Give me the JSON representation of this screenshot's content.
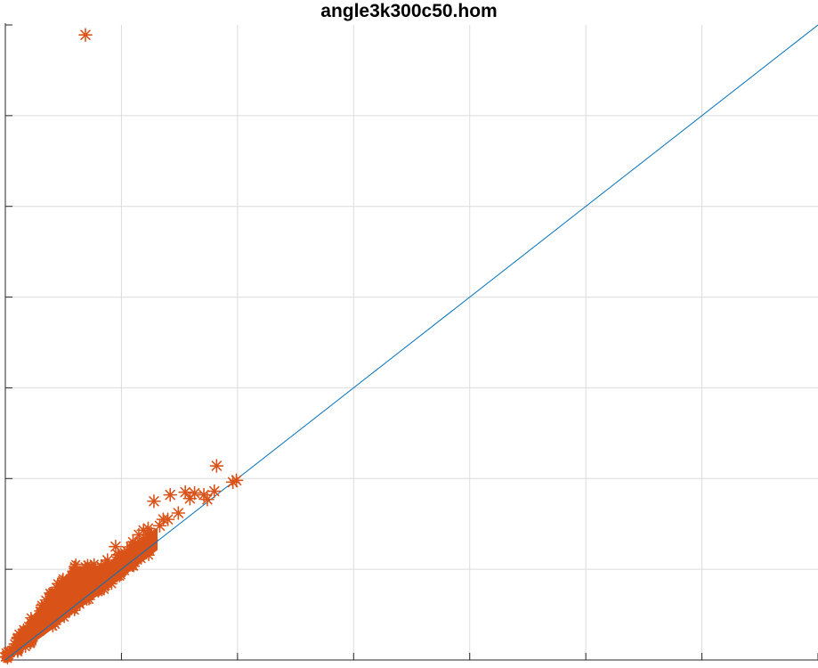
{
  "chart_data": {
    "type": "scatter",
    "title": "angle3k300c50.hom",
    "xlabel": "",
    "ylabel": "",
    "xlim": [
      0,
      7
    ],
    "ylim": [
      0,
      7
    ],
    "grid": true,
    "legend": "none",
    "series": [
      {
        "kind": "line",
        "color": "#0072BD",
        "points": [
          [
            0,
            0
          ],
          [
            7,
            7
          ]
        ]
      },
      {
        "kind": "scatter",
        "marker": "asterisk",
        "color": "#D95319",
        "points": [
          [
            0.69,
            6.89
          ],
          [
            1.82,
            2.14
          ],
          [
            1.99,
            1.98
          ],
          [
            1.96,
            1.96
          ],
          [
            1.28,
            1.75
          ],
          [
            1.55,
            1.85
          ],
          [
            1.42,
            1.82
          ],
          [
            1.63,
            1.84
          ],
          [
            1.71,
            1.82
          ],
          [
            1.8,
            1.86
          ],
          [
            1.74,
            1.77
          ],
          [
            1.59,
            1.78
          ],
          [
            1.36,
            1.55
          ],
          [
            1.19,
            1.43
          ],
          [
            1.49,
            1.62
          ],
          [
            1.1,
            1.3
          ],
          [
            0.95,
            1.25
          ],
          [
            1.23,
            1.45
          ],
          [
            1.33,
            1.48
          ],
          [
            1.4,
            1.55
          ],
          [
            1.15,
            1.38
          ],
          [
            0.88,
            1.1
          ],
          [
            0.97,
            1.16
          ],
          [
            1.05,
            1.2
          ]
        ]
      }
    ],
    "scatter_cloud": {
      "color": "#D95319",
      "x_range": [
        0,
        1.3
      ],
      "relation": "y ≈ x, dense band from origin up to x ≈ 1.3"
    }
  }
}
